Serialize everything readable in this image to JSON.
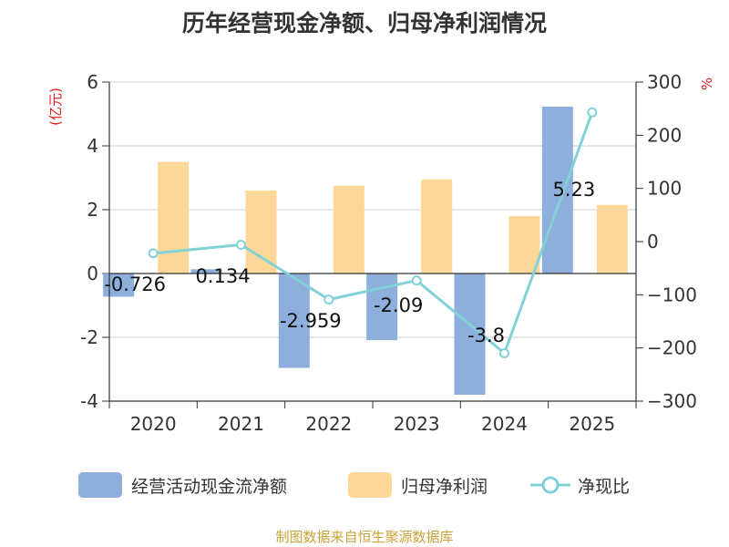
{
  "chart_data": {
    "type": "bar",
    "title": "历年经营现金净额、归母净利润情况",
    "categories": [
      "2020",
      "2021",
      "2022",
      "2023",
      "2024",
      "2025"
    ],
    "left_axis": {
      "unit": "(亿元)",
      "ylim": [
        -4,
        6
      ],
      "ticks": [
        "6",
        "4",
        "2",
        "0",
        "-2",
        "-4"
      ]
    },
    "right_axis": {
      "unit": "%",
      "ylim": [
        -300,
        300
      ],
      "ticks": [
        "300",
        "200",
        "100",
        "0",
        "−100",
        "−200",
        "−300"
      ]
    },
    "grid": true,
    "legend_position": "bottom",
    "series": [
      {
        "name": "经营活动现金流净额",
        "type": "bar",
        "axis": "left",
        "color": "#8eaedc",
        "values": [
          -0.726,
          0.134,
          -2.959,
          -2.09,
          -3.8,
          5.23
        ],
        "labels": [
          "-0.726",
          "0.134",
          "-2.959",
          "-2.09",
          "-3.8",
          "5.23"
        ]
      },
      {
        "name": "归母净利润",
        "type": "bar",
        "axis": "left",
        "color": "#fdd798",
        "values": [
          3.5,
          2.6,
          2.75,
          2.95,
          1.8,
          2.15
        ]
      },
      {
        "name": "净现比",
        "type": "line",
        "axis": "right",
        "color": "#82d0d8",
        "values": [
          -22,
          -6,
          -109,
          -73,
          -210,
          243
        ]
      }
    ]
  },
  "source_note": "制图数据来自恒生聚源数据库"
}
